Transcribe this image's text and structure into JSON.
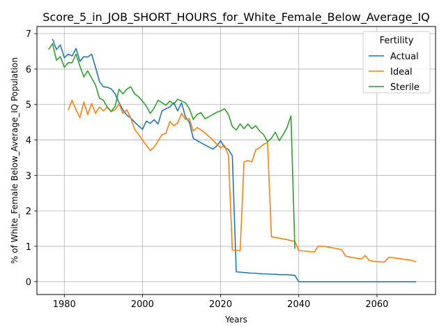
{
  "chart_data": {
    "type": "line",
    "title": "Score_5_in_JOB_SHORT_HOURS_for_White_Female_Below_Average_IQ",
    "xlabel": "Years",
    "ylabel": "% of White_Female Below_Average_IQ Population",
    "xlim": [
      1973,
      2075
    ],
    "ylim": [
      -0.36,
      7.2
    ],
    "xticks": [
      1980,
      2000,
      2020,
      2040,
      2060
    ],
    "yticks": [
      0,
      1,
      2,
      3,
      4,
      5,
      6,
      7
    ],
    "grid": true,
    "legend": {
      "title": "Fertility",
      "placement": "top-right"
    },
    "series": [
      {
        "name": "Actual",
        "color": "#1f77b4",
        "x": [
          1977,
          1978,
          1979,
          1980,
          1981,
          1982,
          1983,
          1984,
          1985,
          1986,
          1987,
          1988,
          1989,
          1990,
          1991,
          1992,
          1993,
          1994,
          1995,
          1996,
          1997,
          1998,
          1999,
          2000,
          2001,
          2002,
          2003,
          2004,
          2005,
          2006,
          2007,
          2008,
          2009,
          2010,
          2011,
          2012,
          2013,
          2014,
          2015,
          2016,
          2017,
          2018,
          2019,
          2020,
          2021,
          2022,
          2023,
          2024,
          2025,
          2026,
          2027,
          2028,
          2029,
          2030,
          2031,
          2032,
          2033,
          2034,
          2035,
          2036,
          2037,
          2038,
          2039,
          2040,
          2045,
          2050,
          2055,
          2060,
          2065,
          2070
        ],
        "values": [
          6.85,
          6.55,
          6.68,
          6.32,
          6.42,
          6.37,
          6.58,
          6.22,
          6.35,
          6.34,
          6.42,
          6.05,
          5.65,
          5.5,
          5.49,
          5.44,
          5.3,
          5.05,
          4.85,
          4.7,
          4.62,
          4.5,
          4.4,
          4.3,
          4.53,
          4.47,
          4.57,
          4.45,
          4.82,
          4.88,
          4.93,
          5.05,
          4.82,
          5.05,
          4.65,
          4.5,
          4.05,
          3.98,
          3.92,
          3.86,
          3.8,
          3.74,
          3.83,
          3.98,
          3.79,
          3.73,
          3.55,
          0.28,
          0.27,
          0.26,
          0.25,
          0.24,
          0.24,
          0.23,
          0.22,
          0.22,
          0.21,
          0.21,
          0.2,
          0.2,
          0.2,
          0.19,
          0.18,
          0.0,
          0.0,
          0.0,
          0.0,
          0.0,
          0.0,
          0.0
        ]
      },
      {
        "name": "Ideal",
        "color": "#ff7f0e",
        "x": [
          1981,
          1982,
          1983,
          1984,
          1985,
          1986,
          1987,
          1988,
          1989,
          1990,
          1991,
          1992,
          1993,
          1994,
          1995,
          1996,
          1997,
          1998,
          1999,
          2000,
          2001,
          2002,
          2003,
          2004,
          2005,
          2006,
          2007,
          2008,
          2009,
          2010,
          2011,
          2012,
          2013,
          2014,
          2015,
          2016,
          2017,
          2018,
          2019,
          2020,
          2021,
          2022,
          2023,
          2024,
          2025,
          2026,
          2027,
          2028,
          2029,
          2030,
          2031,
          2032,
          2033,
          2034,
          2035,
          2036,
          2037,
          2038,
          2039,
          2040,
          2041,
          2042,
          2043,
          2044,
          2045,
          2046,
          2047,
          2048,
          2049,
          2050,
          2051,
          2052,
          2053,
          2054,
          2055,
          2056,
          2057,
          2058,
          2059,
          2060,
          2061,
          2062,
          2063,
          2064,
          2065,
          2066,
          2067,
          2068,
          2069,
          2070
        ],
        "values": [
          4.85,
          5.12,
          4.85,
          4.63,
          5.07,
          4.72,
          5.03,
          4.75,
          4.93,
          4.82,
          4.93,
          4.8,
          4.85,
          5.02,
          4.75,
          4.85,
          4.62,
          4.3,
          4.15,
          4.0,
          3.85,
          3.7,
          3.8,
          3.97,
          4.15,
          4.18,
          4.52,
          4.4,
          4.48,
          4.75,
          4.58,
          4.6,
          4.25,
          4.35,
          4.28,
          4.2,
          4.1,
          4.0,
          3.88,
          3.78,
          3.85,
          3.56,
          0.9,
          0.88,
          0.88,
          3.38,
          3.42,
          3.38,
          3.72,
          3.78,
          3.88,
          3.92,
          1.27,
          1.25,
          1.23,
          1.21,
          1.19,
          1.16,
          1.14,
          0.88,
          0.87,
          0.86,
          0.85,
          0.84,
          1.01,
          1.0,
          0.99,
          0.97,
          0.95,
          0.93,
          0.9,
          0.72,
          0.7,
          0.68,
          0.66,
          0.64,
          0.74,
          0.6,
          0.58,
          0.57,
          0.56,
          0.56,
          0.69,
          0.68,
          0.66,
          0.65,
          0.63,
          0.62,
          0.6,
          0.56
        ]
      },
      {
        "name": "Sterile",
        "color": "#2ca02c",
        "x": [
          1976,
          1977,
          1978,
          1979,
          1980,
          1981,
          1982,
          1983,
          1984,
          1985,
          1986,
          1987,
          1988,
          1989,
          1990,
          1991,
          1992,
          1993,
          1994,
          1995,
          1996,
          1997,
          1998,
          1999,
          2000,
          2001,
          2002,
          2003,
          2004,
          2005,
          2006,
          2007,
          2008,
          2009,
          2010,
          2011,
          2012,
          2013,
          2014,
          2015,
          2016,
          2017,
          2018,
          2019,
          2020,
          2021,
          2022,
          2023,
          2024,
          2025,
          2026,
          2027,
          2028,
          2029,
          2030,
          2031,
          2032,
          2033,
          2034,
          2035,
          2036,
          2037,
          2038,
          2039
        ],
        "values": [
          6.55,
          6.72,
          6.25,
          6.35,
          6.05,
          6.18,
          6.18,
          6.42,
          6.08,
          5.78,
          5.95,
          5.75,
          5.55,
          5.18,
          5.12,
          4.93,
          4.8,
          4.95,
          5.43,
          5.3,
          5.43,
          5.5,
          5.3,
          5.22,
          5.1,
          4.95,
          4.75,
          4.9,
          5.12,
          5.05,
          4.98,
          5.1,
          5.0,
          5.15,
          5.1,
          5.05,
          4.88,
          4.58,
          4.72,
          4.77,
          4.6,
          4.65,
          4.72,
          4.78,
          4.82,
          4.88,
          4.72,
          4.38,
          4.28,
          4.45,
          4.32,
          4.45,
          4.32,
          4.4,
          4.25,
          4.15,
          3.95,
          4.05,
          4.22,
          3.98,
          4.15,
          4.35,
          4.68,
          0.93
        ]
      }
    ]
  }
}
